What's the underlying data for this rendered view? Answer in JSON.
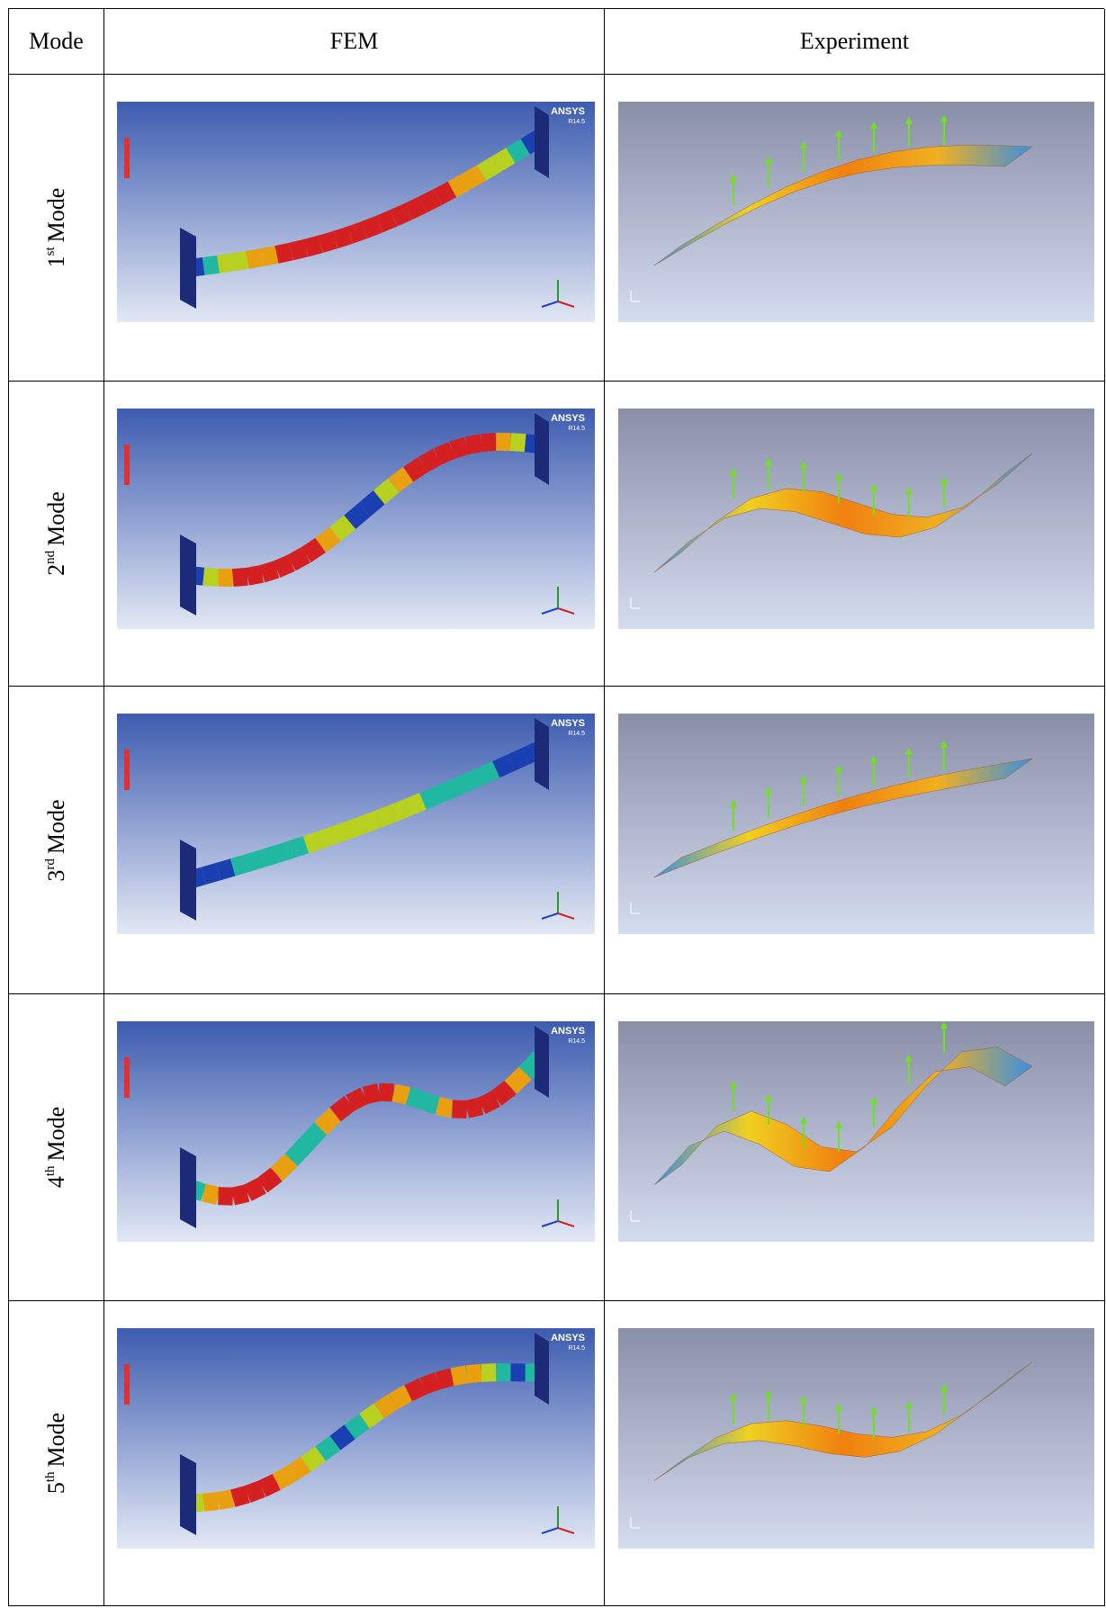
{
  "table": {
    "header": [
      "Mode",
      "FEM",
      "Experiment"
    ],
    "rows": [
      {
        "ordinal": "1",
        "suffix": "st",
        "word": "Mode"
      },
      {
        "ordinal": "2",
        "suffix": "nd",
        "word": "Mode"
      },
      {
        "ordinal": "3",
        "suffix": "rd",
        "word": "Mode"
      },
      {
        "ordinal": "4",
        "suffix": "th",
        "word": "Mode"
      },
      {
        "ordinal": "5",
        "suffix": "th",
        "word": "Mode"
      }
    ]
  },
  "images": {
    "fem_logo": "ANSYS",
    "fem_version": "R14.5"
  }
}
